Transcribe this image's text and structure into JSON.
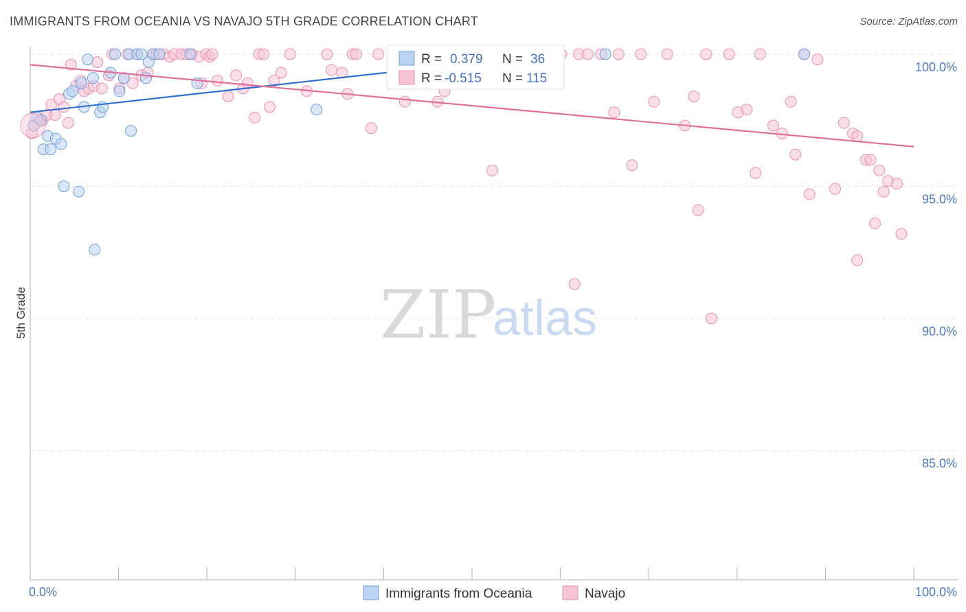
{
  "header": {
    "title": "IMMIGRANTS FROM OCEANIA VS NAVAJO 5TH GRADE CORRELATION CHART",
    "source": "Source: ZipAtlas.com"
  },
  "watermark": {
    "zip": "ZIP",
    "atlas": "atlas"
  },
  "chart_data": {
    "type": "scatter",
    "title": "IMMIGRANTS FROM OCEANIA VS NAVAJO 5TH GRADE CORRELATION CHART",
    "xlabel": "",
    "ylabel": "5th Grade",
    "xlim": [
      0,
      100
    ],
    "ylim": [
      80.5,
      100.6
    ],
    "x_tick_labels": {
      "left": "0.0%",
      "right": "100.0%"
    },
    "y_ticks": [
      {
        "value": 100,
        "label": "100.0%"
      },
      {
        "value": 95,
        "label": "95.0%"
      },
      {
        "value": 90,
        "label": "90.0%"
      },
      {
        "value": 85,
        "label": "85.0%"
      }
    ],
    "legend_stats": [
      {
        "r_label": "R =",
        "r_value": "0.379",
        "n_label": "N =",
        "n_value": "36"
      },
      {
        "r_label": "R =",
        "r_value": "-0.515",
        "n_label": "N =",
        "n_value": "115"
      }
    ],
    "series": [
      {
        "name": "Immigrants from Oceania",
        "color": "#6fa0dc",
        "fill": "#bcd3f2",
        "line_color": "#2f6fcf",
        "trend": {
          "x": [
            0,
            59
          ],
          "y": [
            97.8,
            100.0
          ]
        },
        "points": [
          [
            0.4,
            97.3
          ],
          [
            0.8,
            97.6
          ],
          [
            1.2,
            97.5
          ],
          [
            1.5,
            96.4
          ],
          [
            2.0,
            96.9
          ],
          [
            2.3,
            96.4
          ],
          [
            2.9,
            96.8
          ],
          [
            3.5,
            96.6
          ],
          [
            3.8,
            95.0
          ],
          [
            4.4,
            98.5
          ],
          [
            4.8,
            98.6
          ],
          [
            5.5,
            94.8
          ],
          [
            5.8,
            98.9
          ],
          [
            6.1,
            98.0
          ],
          [
            6.5,
            99.8
          ],
          [
            7.1,
            99.1
          ],
          [
            7.3,
            92.6
          ],
          [
            7.9,
            97.8
          ],
          [
            8.2,
            98.0
          ],
          [
            9.1,
            99.3
          ],
          [
            9.6,
            100.0
          ],
          [
            10.1,
            98.6
          ],
          [
            10.6,
            99.1
          ],
          [
            11.2,
            100.0
          ],
          [
            11.4,
            97.1
          ],
          [
            12.1,
            100.0
          ],
          [
            12.6,
            100.0
          ],
          [
            13.1,
            99.1
          ],
          [
            13.4,
            99.7
          ],
          [
            13.9,
            100.0
          ],
          [
            14.6,
            100.0
          ],
          [
            18.1,
            100.0
          ],
          [
            18.9,
            98.9
          ],
          [
            32.4,
            97.9
          ],
          [
            65.1,
            100.0
          ],
          [
            87.6,
            100.0
          ]
        ]
      },
      {
        "name": "Navajo",
        "color": "#ec8fb0",
        "fill": "#f8c5d6",
        "line_color": "#e0709a",
        "trend": {
          "x": [
            0,
            100
          ],
          "y": [
            99.6,
            96.5
          ]
        },
        "points": [
          [
            0.2,
            97.0
          ],
          [
            0.8,
            97.4
          ],
          [
            1.4,
            97.5
          ],
          [
            1.9,
            97.7
          ],
          [
            2.4,
            98.1
          ],
          [
            2.8,
            97.7
          ],
          [
            3.3,
            98.3
          ],
          [
            3.8,
            98.0
          ],
          [
            4.3,
            97.4
          ],
          [
            4.6,
            99.6
          ],
          [
            5.2,
            98.8
          ],
          [
            5.7,
            99.0
          ],
          [
            6.1,
            98.6
          ],
          [
            6.6,
            98.7
          ],
          [
            7.2,
            98.8
          ],
          [
            7.6,
            99.7
          ],
          [
            8.1,
            98.7
          ],
          [
            8.9,
            99.2
          ],
          [
            9.3,
            100.0
          ],
          [
            10.1,
            98.7
          ],
          [
            10.6,
            99.1
          ],
          [
            11.0,
            100.0
          ],
          [
            11.6,
            98.9
          ],
          [
            12.1,
            100.0
          ],
          [
            12.6,
            99.2
          ],
          [
            13.3,
            99.3
          ],
          [
            13.9,
            100.0
          ],
          [
            14.3,
            100.0
          ],
          [
            15.1,
            100.0
          ],
          [
            15.8,
            99.9
          ],
          [
            16.3,
            100.0
          ],
          [
            17.1,
            100.0
          ],
          [
            17.7,
            100.0
          ],
          [
            18.3,
            100.0
          ],
          [
            19.1,
            99.9
          ],
          [
            19.4,
            98.9
          ],
          [
            19.9,
            100.0
          ],
          [
            20.3,
            99.9
          ],
          [
            20.6,
            100.0
          ],
          [
            21.2,
            99.0
          ],
          [
            22.4,
            98.4
          ],
          [
            23.3,
            99.2
          ],
          [
            24.1,
            98.7
          ],
          [
            24.6,
            98.9
          ],
          [
            25.4,
            97.6
          ],
          [
            25.9,
            100.0
          ],
          [
            26.4,
            100.0
          ],
          [
            27.1,
            98.0
          ],
          [
            27.6,
            99.0
          ],
          [
            28.4,
            99.3
          ],
          [
            29.4,
            100.0
          ],
          [
            31.3,
            98.6
          ],
          [
            33.6,
            100.0
          ],
          [
            34.1,
            99.4
          ],
          [
            35.3,
            99.3
          ],
          [
            35.9,
            98.5
          ],
          [
            36.5,
            100.0
          ],
          [
            36.9,
            100.0
          ],
          [
            38.6,
            97.2
          ],
          [
            39.4,
            100.0
          ],
          [
            41.4,
            100.0
          ],
          [
            42.4,
            98.2
          ],
          [
            44.1,
            100.0
          ],
          [
            45.6,
            100.0
          ],
          [
            46.1,
            98.2
          ],
          [
            46.9,
            98.6
          ],
          [
            48.1,
            100.0
          ],
          [
            49.6,
            100.0
          ],
          [
            51.1,
            100.0
          ],
          [
            52.3,
            95.6
          ],
          [
            53.5,
            100.0
          ],
          [
            55.1,
            100.0
          ],
          [
            56.6,
            100.0
          ],
          [
            58.6,
            100.0
          ],
          [
            60.1,
            100.0
          ],
          [
            61.6,
            91.3
          ],
          [
            62.1,
            100.0
          ],
          [
            63.1,
            100.0
          ],
          [
            64.6,
            100.0
          ],
          [
            66.1,
            97.8
          ],
          [
            66.6,
            100.0
          ],
          [
            68.1,
            95.8
          ],
          [
            69.1,
            100.0
          ],
          [
            70.6,
            98.2
          ],
          [
            72.1,
            100.0
          ],
          [
            74.1,
            97.3
          ],
          [
            75.1,
            98.4
          ],
          [
            75.6,
            94.1
          ],
          [
            76.5,
            100.0
          ],
          [
            77.1,
            90.0
          ],
          [
            79.1,
            100.0
          ],
          [
            80.1,
            97.8
          ],
          [
            81.1,
            97.9
          ],
          [
            82.1,
            95.5
          ],
          [
            82.6,
            100.0
          ],
          [
            84.1,
            97.3
          ],
          [
            85.1,
            97.0
          ],
          [
            86.1,
            98.2
          ],
          [
            86.6,
            96.2
          ],
          [
            87.6,
            100.0
          ],
          [
            88.2,
            94.7
          ],
          [
            89.1,
            99.8
          ],
          [
            91.1,
            94.9
          ],
          [
            92.1,
            97.4
          ],
          [
            93.1,
            97.0
          ],
          [
            93.6,
            96.9
          ],
          [
            94.6,
            96.0
          ],
          [
            95.1,
            96.0
          ],
          [
            95.6,
            93.6
          ],
          [
            96.1,
            95.6
          ],
          [
            96.6,
            94.8
          ],
          [
            97.1,
            95.2
          ],
          [
            98.1,
            95.1
          ],
          [
            98.6,
            93.2
          ],
          [
            93.6,
            92.2
          ]
        ]
      }
    ],
    "legend": {
      "position": "bottom",
      "entries": [
        "Immigrants from Oceania",
        "Navajo"
      ]
    }
  }
}
